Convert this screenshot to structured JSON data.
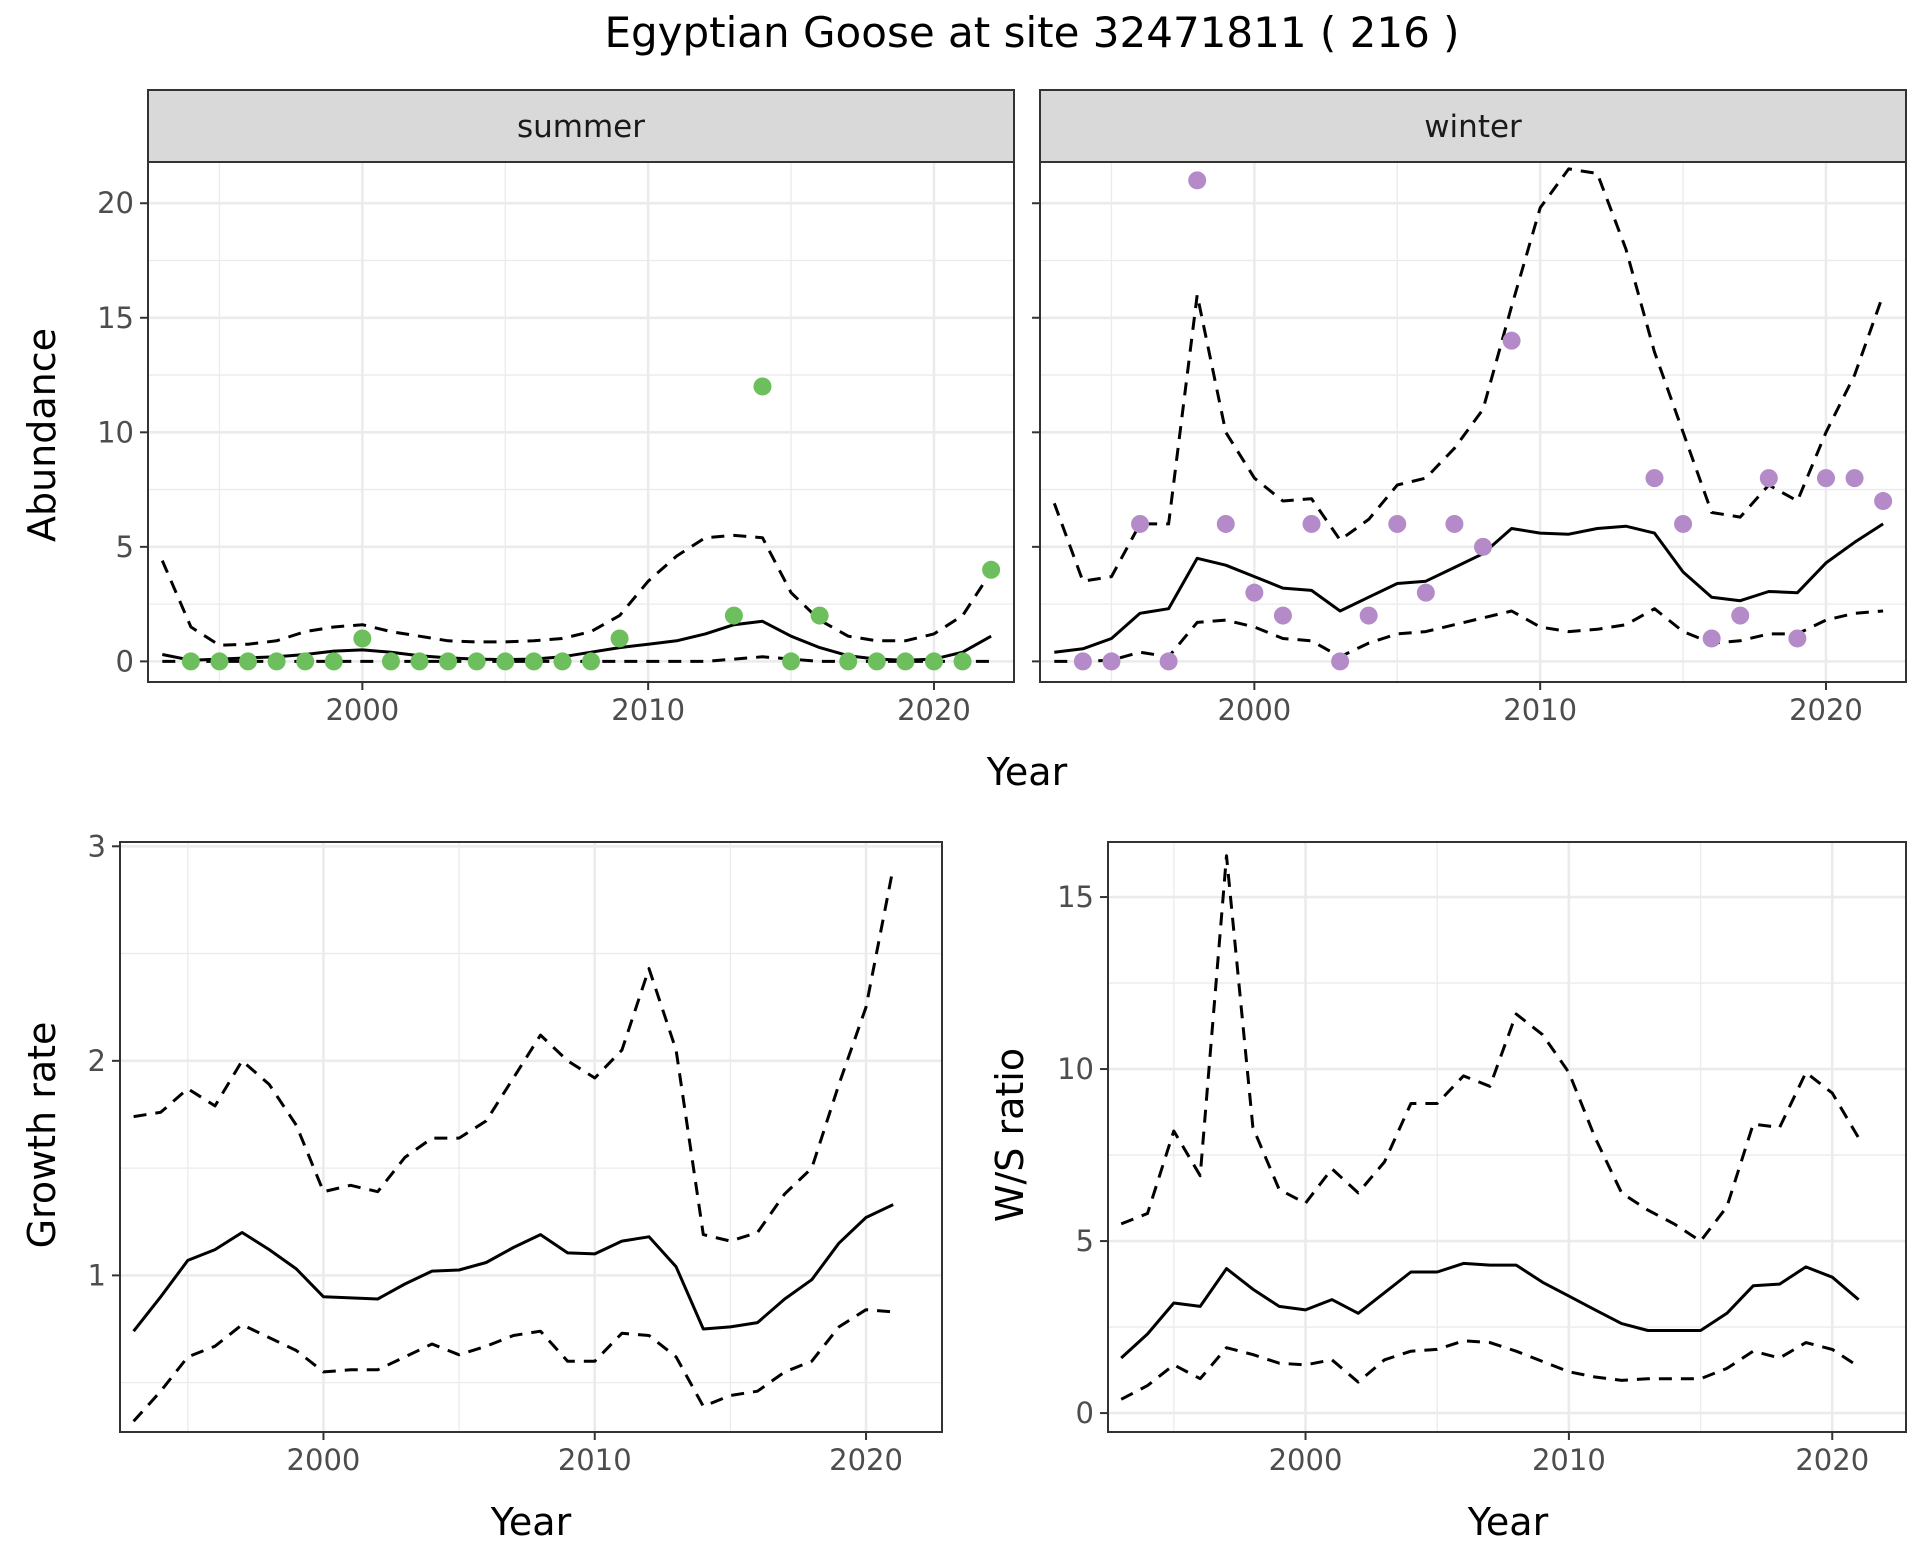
{
  "title": "Egyptian Goose at site 32471811 ( 216 )",
  "colors": {
    "summer": "#6cbf5c",
    "winter": "#b48bc8",
    "line": "#000000",
    "grid": "#ebebeb",
    "strip": "#d9d9d9"
  },
  "chart_data": [
    {
      "type": "line",
      "facet": "summer",
      "strip_label": "summer",
      "xlabel": "Year",
      "ylabel": "Abundance",
      "xlim": [
        1992.5,
        2022.8
      ],
      "ylim": [
        -0.9,
        21.8
      ],
      "xticks": [
        2000,
        2010,
        2020
      ],
      "yticks": [
        0,
        5,
        10,
        15,
        20
      ],
      "xtick_labels": [
        "2000",
        "2010",
        "2020"
      ],
      "ytick_labels": [
        "0",
        "5",
        "10",
        "15",
        "20"
      ],
      "points": {
        "x": [
          1994,
          1995,
          1996,
          1997,
          1998,
          1999,
          2000,
          2001,
          2002,
          2003,
          2004,
          2005,
          2006,
          2007,
          2008,
          2009,
          2013,
          2014,
          2015,
          2016,
          2017,
          2018,
          2019,
          2020,
          2021,
          2022
        ],
        "y": [
          0,
          0,
          0,
          0,
          0,
          0,
          1,
          0,
          0,
          0,
          0,
          0,
          0,
          0,
          0,
          1,
          2,
          12,
          0,
          2,
          0,
          0,
          0,
          0,
          0,
          4
        ]
      },
      "series": [
        {
          "style": "solid",
          "x": [
            1993,
            1994,
            1995,
            1996,
            1997,
            1998,
            1999,
            2000,
            2001,
            2002,
            2003,
            2004,
            2005,
            2006,
            2007,
            2008,
            2009,
            2010,
            2011,
            2012,
            2013,
            2014,
            2015,
            2016,
            2017,
            2018,
            2019,
            2020,
            2021,
            2022
          ],
          "y": [
            0.3,
            0.05,
            0.1,
            0.15,
            0.2,
            0.3,
            0.45,
            0.5,
            0.4,
            0.25,
            0.15,
            0.1,
            0.08,
            0.1,
            0.2,
            0.4,
            0.6,
            0.75,
            0.9,
            1.2,
            1.6,
            1.75,
            1.1,
            0.6,
            0.25,
            0.1,
            0.05,
            0.1,
            0.4,
            1.1
          ]
        },
        {
          "style": "dashed",
          "x": [
            1993,
            1994,
            1995,
            1996,
            1997,
            1998,
            1999,
            2000,
            2001,
            2002,
            2003,
            2004,
            2005,
            2006,
            2007,
            2008,
            2009,
            2010,
            2011,
            2012,
            2013,
            2014,
            2015,
            2016,
            2017,
            2018,
            2019,
            2020,
            2021,
            2022
          ],
          "y": [
            4.4,
            1.5,
            0.7,
            0.75,
            0.9,
            1.3,
            1.5,
            1.6,
            1.3,
            1.1,
            0.9,
            0.85,
            0.85,
            0.9,
            1.0,
            1.3,
            2.0,
            3.5,
            4.6,
            5.4,
            5.5,
            5.4,
            3.0,
            1.8,
            1.1,
            0.9,
            0.9,
            1.2,
            2.0,
            3.9
          ]
        },
        {
          "style": "dashed",
          "x": [
            1993,
            1994,
            1995,
            1996,
            1997,
            1998,
            1999,
            2000,
            2001,
            2002,
            2003,
            2004,
            2005,
            2006,
            2007,
            2008,
            2009,
            2010,
            2011,
            2012,
            2013,
            2014,
            2015,
            2016,
            2017,
            2018,
            2019,
            2020,
            2021,
            2022
          ],
          "y": [
            0,
            0,
            0,
            0,
            0,
            0,
            0,
            0,
            0,
            0,
            0,
            0,
            0,
            0,
            0,
            0,
            0,
            0,
            0,
            0,
            0.1,
            0.2,
            0.1,
            0,
            0,
            0,
            0,
            0,
            0,
            0
          ]
        }
      ]
    },
    {
      "type": "line",
      "facet": "winter",
      "strip_label": "winter",
      "xlim": [
        1992.5,
        2022.8
      ],
      "ylim": [
        -0.9,
        21.8
      ],
      "xticks": [
        2000,
        2010,
        2020
      ],
      "yticks": [
        0,
        5,
        10,
        15,
        20
      ],
      "xtick_labels": [
        "2000",
        "2010",
        "2020"
      ],
      "points": {
        "x": [
          1994,
          1995,
          1996,
          1997,
          1998,
          1999,
          2000,
          2001,
          2002,
          2003,
          2004,
          2005,
          2006,
          2007,
          2008,
          2009,
          2014,
          2015,
          2016,
          2017,
          2018,
          2019,
          2020,
          2021,
          2022
        ],
        "y": [
          0,
          0,
          6,
          0,
          21,
          6,
          3,
          2,
          6,
          0,
          2,
          6,
          3,
          6,
          5,
          14,
          8,
          6,
          1,
          2,
          8,
          1,
          8,
          8,
          7
        ]
      },
      "series": [
        {
          "style": "solid",
          "x": [
            1993,
            1994,
            1995,
            1996,
            1997,
            1998,
            1999,
            2000,
            2001,
            2002,
            2003,
            2004,
            2005,
            2006,
            2007,
            2008,
            2009,
            2010,
            2011,
            2012,
            2013,
            2014,
            2015,
            2016,
            2017,
            2018,
            2019,
            2020,
            2021,
            2022
          ],
          "y": [
            0.4,
            0.55,
            1.0,
            2.1,
            2.3,
            4.5,
            4.2,
            3.7,
            3.2,
            3.1,
            2.2,
            2.8,
            3.4,
            3.5,
            4.1,
            4.7,
            5.8,
            5.6,
            5.55,
            5.8,
            5.9,
            5.6,
            3.9,
            2.8,
            2.65,
            3.05,
            3.0,
            4.3,
            5.2,
            6.0
          ]
        },
        {
          "style": "dashed",
          "x": [
            1993,
            1994,
            1995,
            1996,
            1997,
            1998,
            1999,
            2000,
            2001,
            2002,
            2003,
            2004,
            2005,
            2006,
            2007,
            2008,
            2009,
            2010,
            2011,
            2012,
            2013,
            2014,
            2015,
            2016,
            2017,
            2018,
            2019,
            2020,
            2021,
            2022
          ],
          "y": [
            6.9,
            3.5,
            3.7,
            6.0,
            6.0,
            16.0,
            10.0,
            8.0,
            7.0,
            7.1,
            5.3,
            6.2,
            7.7,
            8.0,
            9.3,
            11.0,
            15.5,
            19.8,
            21.5,
            21.3,
            18.0,
            13.5,
            10.0,
            6.5,
            6.3,
            7.7,
            7.0,
            10.0,
            12.5,
            16.0
          ]
        },
        {
          "style": "dashed",
          "x": [
            1993,
            1994,
            1995,
            1996,
            1997,
            1998,
            1999,
            2000,
            2001,
            2002,
            2003,
            2004,
            2005,
            2006,
            2007,
            2008,
            2009,
            2010,
            2011,
            2012,
            2013,
            2014,
            2015,
            2016,
            2017,
            2018,
            2019,
            2020,
            2021,
            2022
          ],
          "y": [
            0,
            0,
            0.05,
            0.4,
            0.2,
            1.7,
            1.8,
            1.5,
            1.0,
            0.9,
            0.2,
            0.8,
            1.2,
            1.3,
            1.6,
            1.9,
            2.2,
            1.5,
            1.3,
            1.4,
            1.6,
            2.3,
            1.3,
            0.8,
            0.9,
            1.2,
            1.2,
            1.8,
            2.1,
            2.2
          ]
        }
      ]
    },
    {
      "type": "line",
      "facet": "growth",
      "xlabel": "Year",
      "ylabel": "Growth rate",
      "xlim": [
        1992.5,
        2022.8
      ],
      "ylim": [
        0.27,
        3.02
      ],
      "xticks": [
        2000,
        2010,
        2020
      ],
      "yticks": [
        1,
        2,
        3
      ],
      "xtick_labels": [
        "2000",
        "2010",
        "2020"
      ],
      "ytick_labels": [
        "1",
        "2",
        "3"
      ],
      "series": [
        {
          "style": "solid",
          "x": [
            1993,
            1994,
            1995,
            1996,
            1997,
            1998,
            1999,
            2000,
            2001,
            2002,
            2003,
            2004,
            2005,
            2006,
            2007,
            2008,
            2009,
            2010,
            2011,
            2012,
            2013,
            2014,
            2015,
            2016,
            2017,
            2018,
            2019,
            2020,
            2021
          ],
          "y": [
            0.74,
            0.9,
            1.07,
            1.12,
            1.2,
            1.12,
            1.03,
            0.9,
            0.895,
            0.89,
            0.96,
            1.02,
            1.025,
            1.06,
            1.13,
            1.19,
            1.105,
            1.1,
            1.16,
            1.18,
            1.04,
            0.75,
            0.76,
            0.78,
            0.89,
            0.98,
            1.15,
            1.27,
            1.33
          ]
        },
        {
          "style": "dashed",
          "x": [
            1993,
            1994,
            1995,
            1996,
            1997,
            1998,
            1999,
            2000,
            2001,
            2002,
            2003,
            2004,
            2005,
            2006,
            2007,
            2008,
            2009,
            2010,
            2011,
            2012,
            2013,
            2014,
            2015,
            2016,
            2017,
            2018,
            2019,
            2020,
            2021
          ],
          "y": [
            1.74,
            1.76,
            1.87,
            1.79,
            2.0,
            1.89,
            1.7,
            1.39,
            1.42,
            1.39,
            1.55,
            1.64,
            1.64,
            1.72,
            1.92,
            2.12,
            2.0,
            1.92,
            2.05,
            2.43,
            2.05,
            1.19,
            1.16,
            1.2,
            1.38,
            1.5,
            1.89,
            2.25,
            2.9
          ]
        },
        {
          "style": "dashed",
          "x": [
            1993,
            1994,
            1995,
            1996,
            1997,
            1998,
            1999,
            2000,
            2001,
            2002,
            2003,
            2004,
            2005,
            2006,
            2007,
            2008,
            2009,
            2010,
            2011,
            2012,
            2013,
            2014,
            2015,
            2016,
            2017,
            2018,
            2019,
            2020,
            2021
          ],
          "y": [
            0.32,
            0.46,
            0.62,
            0.67,
            0.77,
            0.71,
            0.65,
            0.55,
            0.56,
            0.56,
            0.62,
            0.68,
            0.63,
            0.67,
            0.72,
            0.74,
            0.6,
            0.6,
            0.73,
            0.72,
            0.62,
            0.39,
            0.44,
            0.46,
            0.55,
            0.6,
            0.76,
            0.84,
            0.83
          ]
        }
      ]
    },
    {
      "type": "line",
      "facet": "ratio",
      "xlabel": "Year",
      "ylabel": "W/S ratio",
      "xlim": [
        1992.5,
        2022.8
      ],
      "ylim": [
        -0.55,
        16.6
      ],
      "xticks": [
        2000,
        2010,
        2020
      ],
      "yticks": [
        0,
        5,
        10,
        15
      ],
      "xtick_labels": [
        "2000",
        "2010",
        "2020"
      ],
      "ytick_labels": [
        "0",
        "5",
        "10",
        "15"
      ],
      "series": [
        {
          "style": "solid",
          "x": [
            1993,
            1994,
            1995,
            1996,
            1997,
            1998,
            1999,
            2000,
            2001,
            2002,
            2003,
            2004,
            2005,
            2006,
            2007,
            2008,
            2009,
            2010,
            2011,
            2012,
            2013,
            2014,
            2015,
            2016,
            2017,
            2018,
            2019,
            2020,
            2021
          ],
          "y": [
            1.6,
            2.3,
            3.2,
            3.1,
            4.2,
            3.6,
            3.1,
            3.0,
            3.3,
            2.9,
            3.5,
            4.1,
            4.1,
            4.35,
            4.3,
            4.3,
            3.8,
            3.4,
            3.0,
            2.6,
            2.4,
            2.4,
            2.4,
            2.9,
            3.7,
            3.75,
            4.25,
            3.95,
            3.3
          ]
        },
        {
          "style": "dashed",
          "x": [
            1993,
            1994,
            1995,
            1996,
            1997,
            1998,
            1999,
            2000,
            2001,
            2002,
            2003,
            2004,
            2005,
            2006,
            2007,
            2008,
            2009,
            2010,
            2011,
            2012,
            2013,
            2014,
            2015,
            2016,
            2017,
            2018,
            2019,
            2020,
            2021
          ],
          "y": [
            5.5,
            5.8,
            8.2,
            6.9,
            16.2,
            8.3,
            6.5,
            6.1,
            7.1,
            6.4,
            7.3,
            9.0,
            9.0,
            9.8,
            9.5,
            11.6,
            11.0,
            9.9,
            8.0,
            6.4,
            5.9,
            5.5,
            5.0,
            6.0,
            8.4,
            8.3,
            9.9,
            9.3,
            8.0
          ]
        },
        {
          "style": "dashed",
          "x": [
            1993,
            1994,
            1995,
            1996,
            1997,
            1998,
            1999,
            2000,
            2001,
            2002,
            2003,
            2004,
            2005,
            2006,
            2007,
            2008,
            2009,
            2010,
            2011,
            2012,
            2013,
            2014,
            2015,
            2016,
            2017,
            2018,
            2019,
            2020,
            2021
          ],
          "y": [
            0.4,
            0.8,
            1.4,
            1.0,
            1.9,
            1.7,
            1.45,
            1.4,
            1.55,
            0.9,
            1.55,
            1.8,
            1.85,
            2.1,
            2.05,
            1.8,
            1.5,
            1.2,
            1.05,
            0.95,
            1.0,
            1.0,
            1.0,
            1.3,
            1.8,
            1.6,
            2.05,
            1.85,
            1.35
          ]
        }
      ]
    }
  ]
}
